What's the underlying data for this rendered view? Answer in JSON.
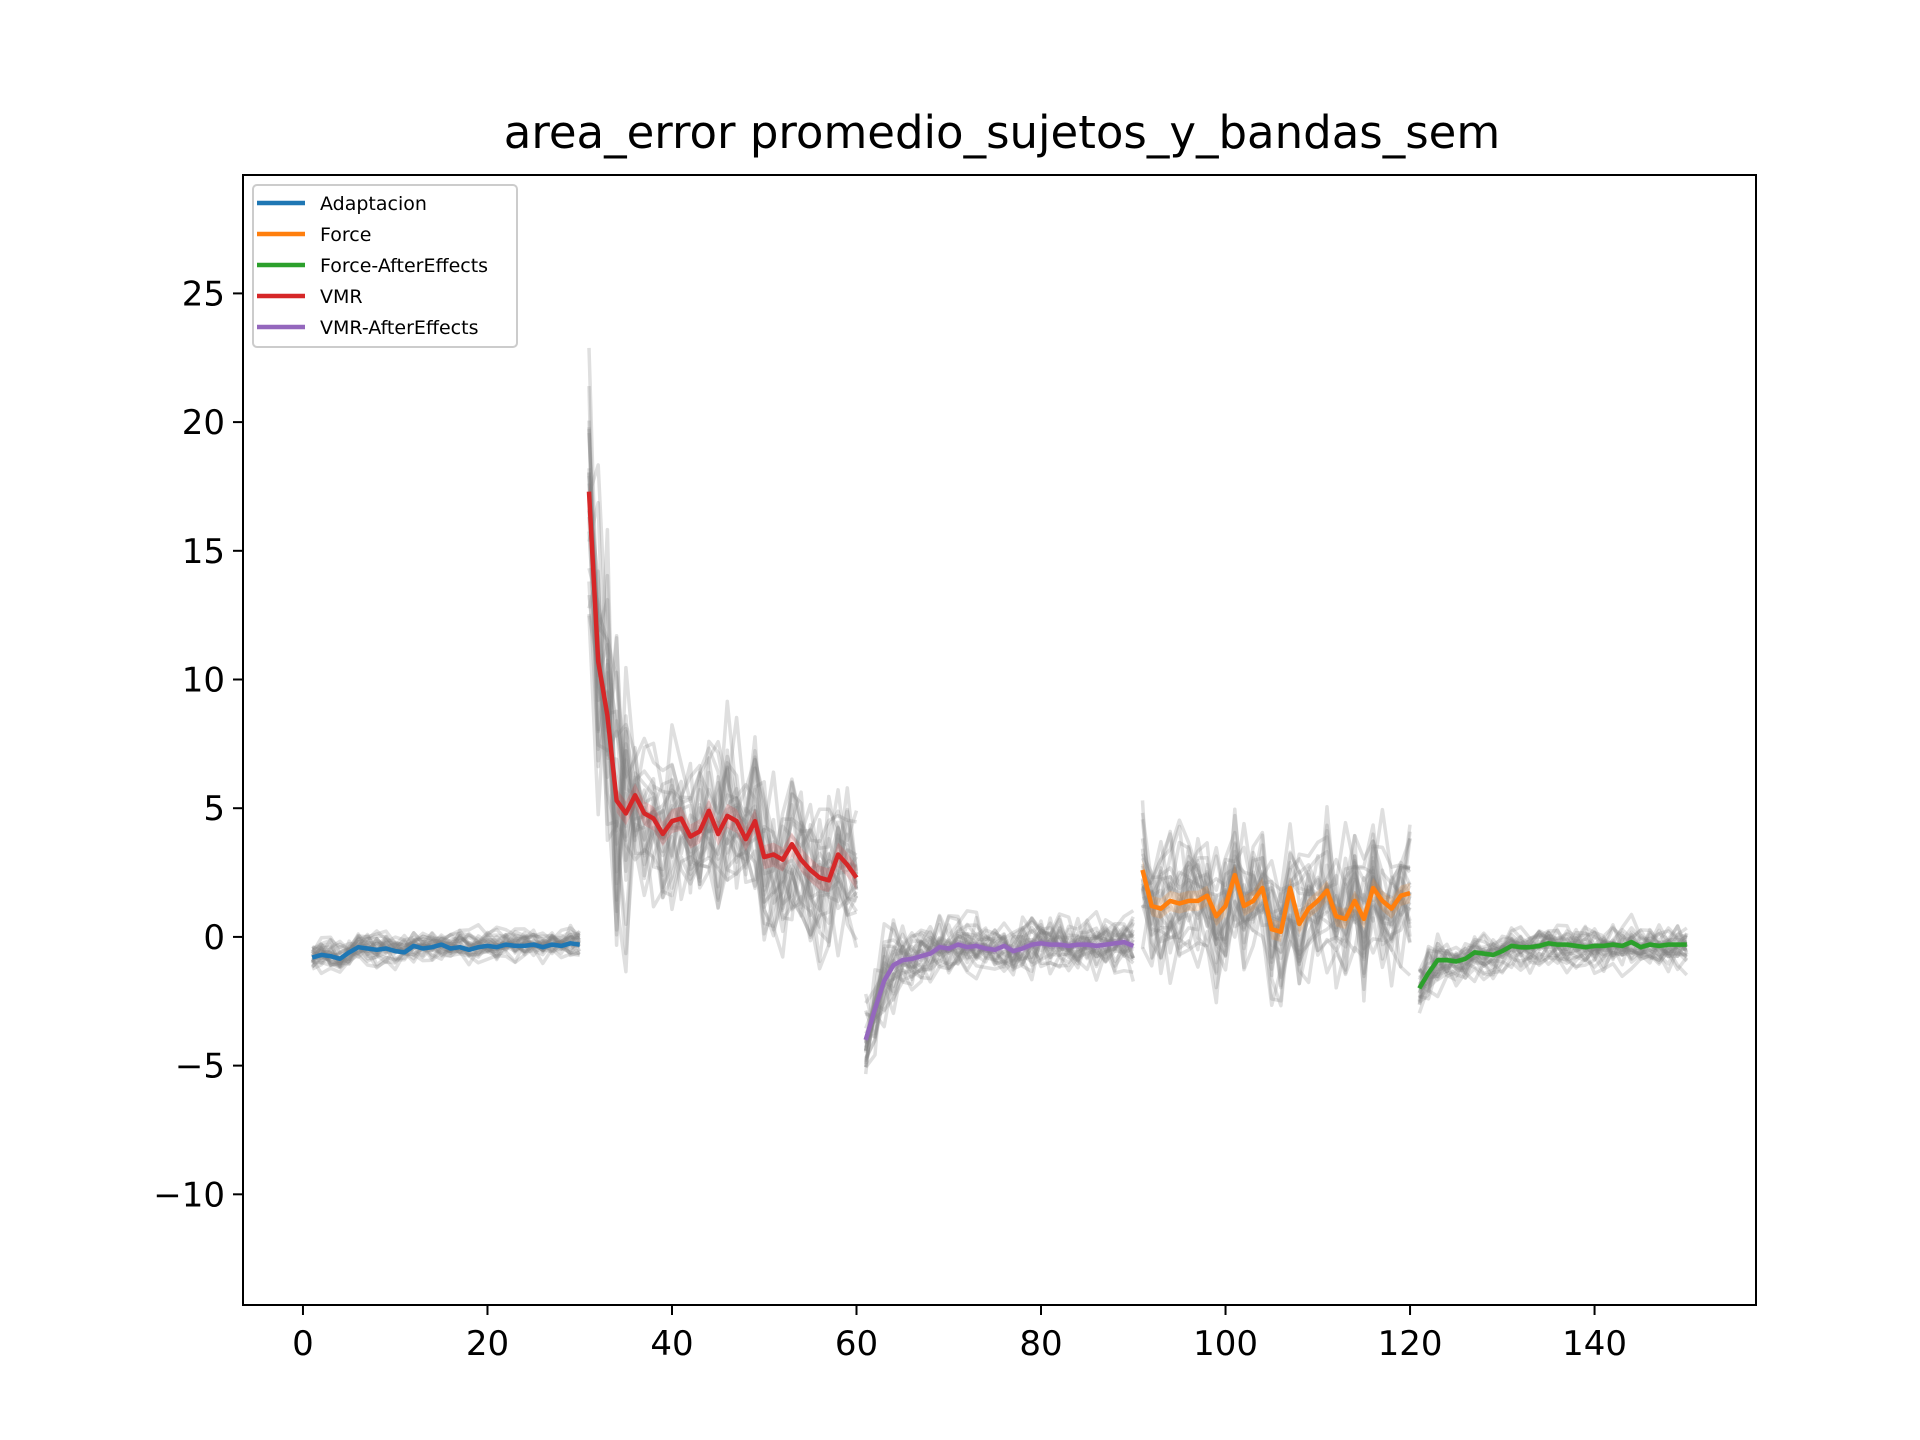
{
  "chart_data": {
    "type": "line",
    "title": "area_error promedio_sujetos_y_bandas_sem",
    "xlabel": "",
    "ylabel": "",
    "xlim": [
      -6.5,
      157.5
    ],
    "ylim": [
      -14.3,
      29.6
    ],
    "xticks": [
      0,
      20,
      40,
      60,
      80,
      100,
      120,
      140
    ],
    "yticks": [
      -10,
      -5,
      0,
      5,
      10,
      15,
      20,
      25
    ],
    "ytick_labels": [
      "−10",
      "−5",
      "0",
      "5",
      "10",
      "15",
      "20",
      "25"
    ],
    "grid": false,
    "legend_position": "top-left",
    "series": [
      {
        "name": "Adaptacion",
        "color": "#1f77b4",
        "x": [
          1,
          2,
          3,
          4,
          5,
          6,
          7,
          8,
          9,
          10,
          11,
          12,
          13,
          14,
          15,
          16,
          17,
          18,
          19,
          20,
          21,
          22,
          23,
          24,
          25,
          26,
          27,
          28,
          29,
          30
        ],
        "y": [
          -0.8,
          -0.7,
          -0.75,
          -0.85,
          -0.6,
          -0.4,
          -0.45,
          -0.5,
          -0.45,
          -0.55,
          -0.6,
          -0.35,
          -0.45,
          -0.4,
          -0.3,
          -0.45,
          -0.4,
          -0.5,
          -0.4,
          -0.35,
          -0.4,
          -0.3,
          -0.35,
          -0.35,
          -0.3,
          -0.4,
          -0.3,
          -0.35,
          -0.25,
          -0.3
        ]
      },
      {
        "name": "VMR",
        "color": "#d62728",
        "x": [
          31,
          32,
          33,
          34,
          35,
          36,
          37,
          38,
          39,
          40,
          41,
          42,
          43,
          44,
          45,
          46,
          47,
          48,
          49,
          50,
          51,
          52,
          53,
          54,
          55,
          56,
          57,
          58,
          59,
          60
        ],
        "y": [
          17.3,
          10.7,
          8.6,
          5.3,
          4.8,
          5.5,
          4.8,
          4.6,
          4.0,
          4.5,
          4.6,
          3.9,
          4.1,
          4.9,
          4.0,
          4.7,
          4.5,
          3.8,
          4.5,
          3.1,
          3.2,
          3.0,
          3.6,
          3.0,
          2.6,
          2.3,
          2.2,
          3.2,
          2.8,
          2.3
        ]
      },
      {
        "name": "VMR-AfterEffects",
        "color": "#9467bd",
        "x": [
          61,
          62,
          63,
          64,
          65,
          66,
          67,
          68,
          69,
          70,
          71,
          72,
          73,
          74,
          75,
          76,
          77,
          78,
          79,
          80,
          81,
          82,
          83,
          84,
          85,
          86,
          87,
          88,
          89,
          90
        ],
        "y": [
          -4.0,
          -2.8,
          -1.7,
          -1.1,
          -0.9,
          -0.85,
          -0.75,
          -0.65,
          -0.4,
          -0.45,
          -0.3,
          -0.4,
          -0.35,
          -0.45,
          -0.5,
          -0.35,
          -0.55,
          -0.45,
          -0.3,
          -0.25,
          -0.3,
          -0.3,
          -0.35,
          -0.3,
          -0.3,
          -0.35,
          -0.3,
          -0.25,
          -0.2,
          -0.35
        ]
      },
      {
        "name": "Force",
        "color": "#ff7f0e",
        "x": [
          91,
          92,
          93,
          94,
          95,
          96,
          97,
          98,
          99,
          100,
          101,
          102,
          103,
          104,
          105,
          106,
          107,
          108,
          109,
          110,
          111,
          112,
          113,
          114,
          115,
          116,
          117,
          118,
          119,
          120
        ],
        "y": [
          2.6,
          1.2,
          1.1,
          1.4,
          1.3,
          1.4,
          1.4,
          1.6,
          0.8,
          1.2,
          2.4,
          1.2,
          1.4,
          1.9,
          0.3,
          0.2,
          1.9,
          0.5,
          1.1,
          1.4,
          1.8,
          0.8,
          0.7,
          1.4,
          0.7,
          1.9,
          1.4,
          1.1,
          1.6,
          1.7
        ]
      },
      {
        "name": "Force-AfterEffects",
        "color": "#2ca02c",
        "x": [
          121,
          122,
          123,
          124,
          125,
          126,
          127,
          128,
          129,
          130,
          131,
          132,
          133,
          134,
          135,
          136,
          137,
          138,
          139,
          140,
          141,
          142,
          143,
          144,
          145,
          146,
          147,
          148,
          149,
          150
        ],
        "y": [
          -2.0,
          -1.4,
          -0.9,
          -0.9,
          -0.95,
          -0.85,
          -0.6,
          -0.65,
          -0.7,
          -0.55,
          -0.35,
          -0.4,
          -0.4,
          -0.35,
          -0.25,
          -0.3,
          -0.3,
          -0.35,
          -0.4,
          -0.35,
          -0.35,
          -0.3,
          -0.35,
          -0.2,
          -0.4,
          -0.3,
          -0.35,
          -0.3,
          -0.3,
          -0.3
        ]
      }
    ]
  }
}
